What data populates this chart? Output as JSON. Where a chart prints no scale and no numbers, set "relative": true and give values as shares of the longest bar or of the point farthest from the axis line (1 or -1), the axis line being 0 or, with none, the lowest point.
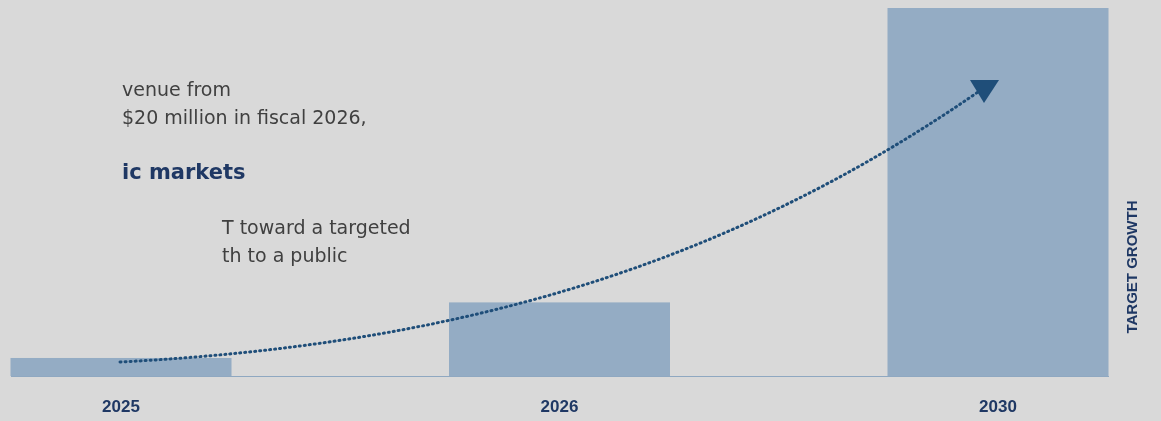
{
  "chart_data": {
    "type": "bar",
    "relative": true,
    "categories": [
      "2025",
      "2026",
      "2030"
    ],
    "values": [
      0.049,
      0.2,
      1
    ],
    "color": "#94acc4",
    "ylabel": "TARGET GROWTH",
    "annotations": [
      "venue from",
      "$20 million in fiscal 2026,",
      "ic markets",
      "T toward a targeted",
      "th to a public"
    ]
  }
}
